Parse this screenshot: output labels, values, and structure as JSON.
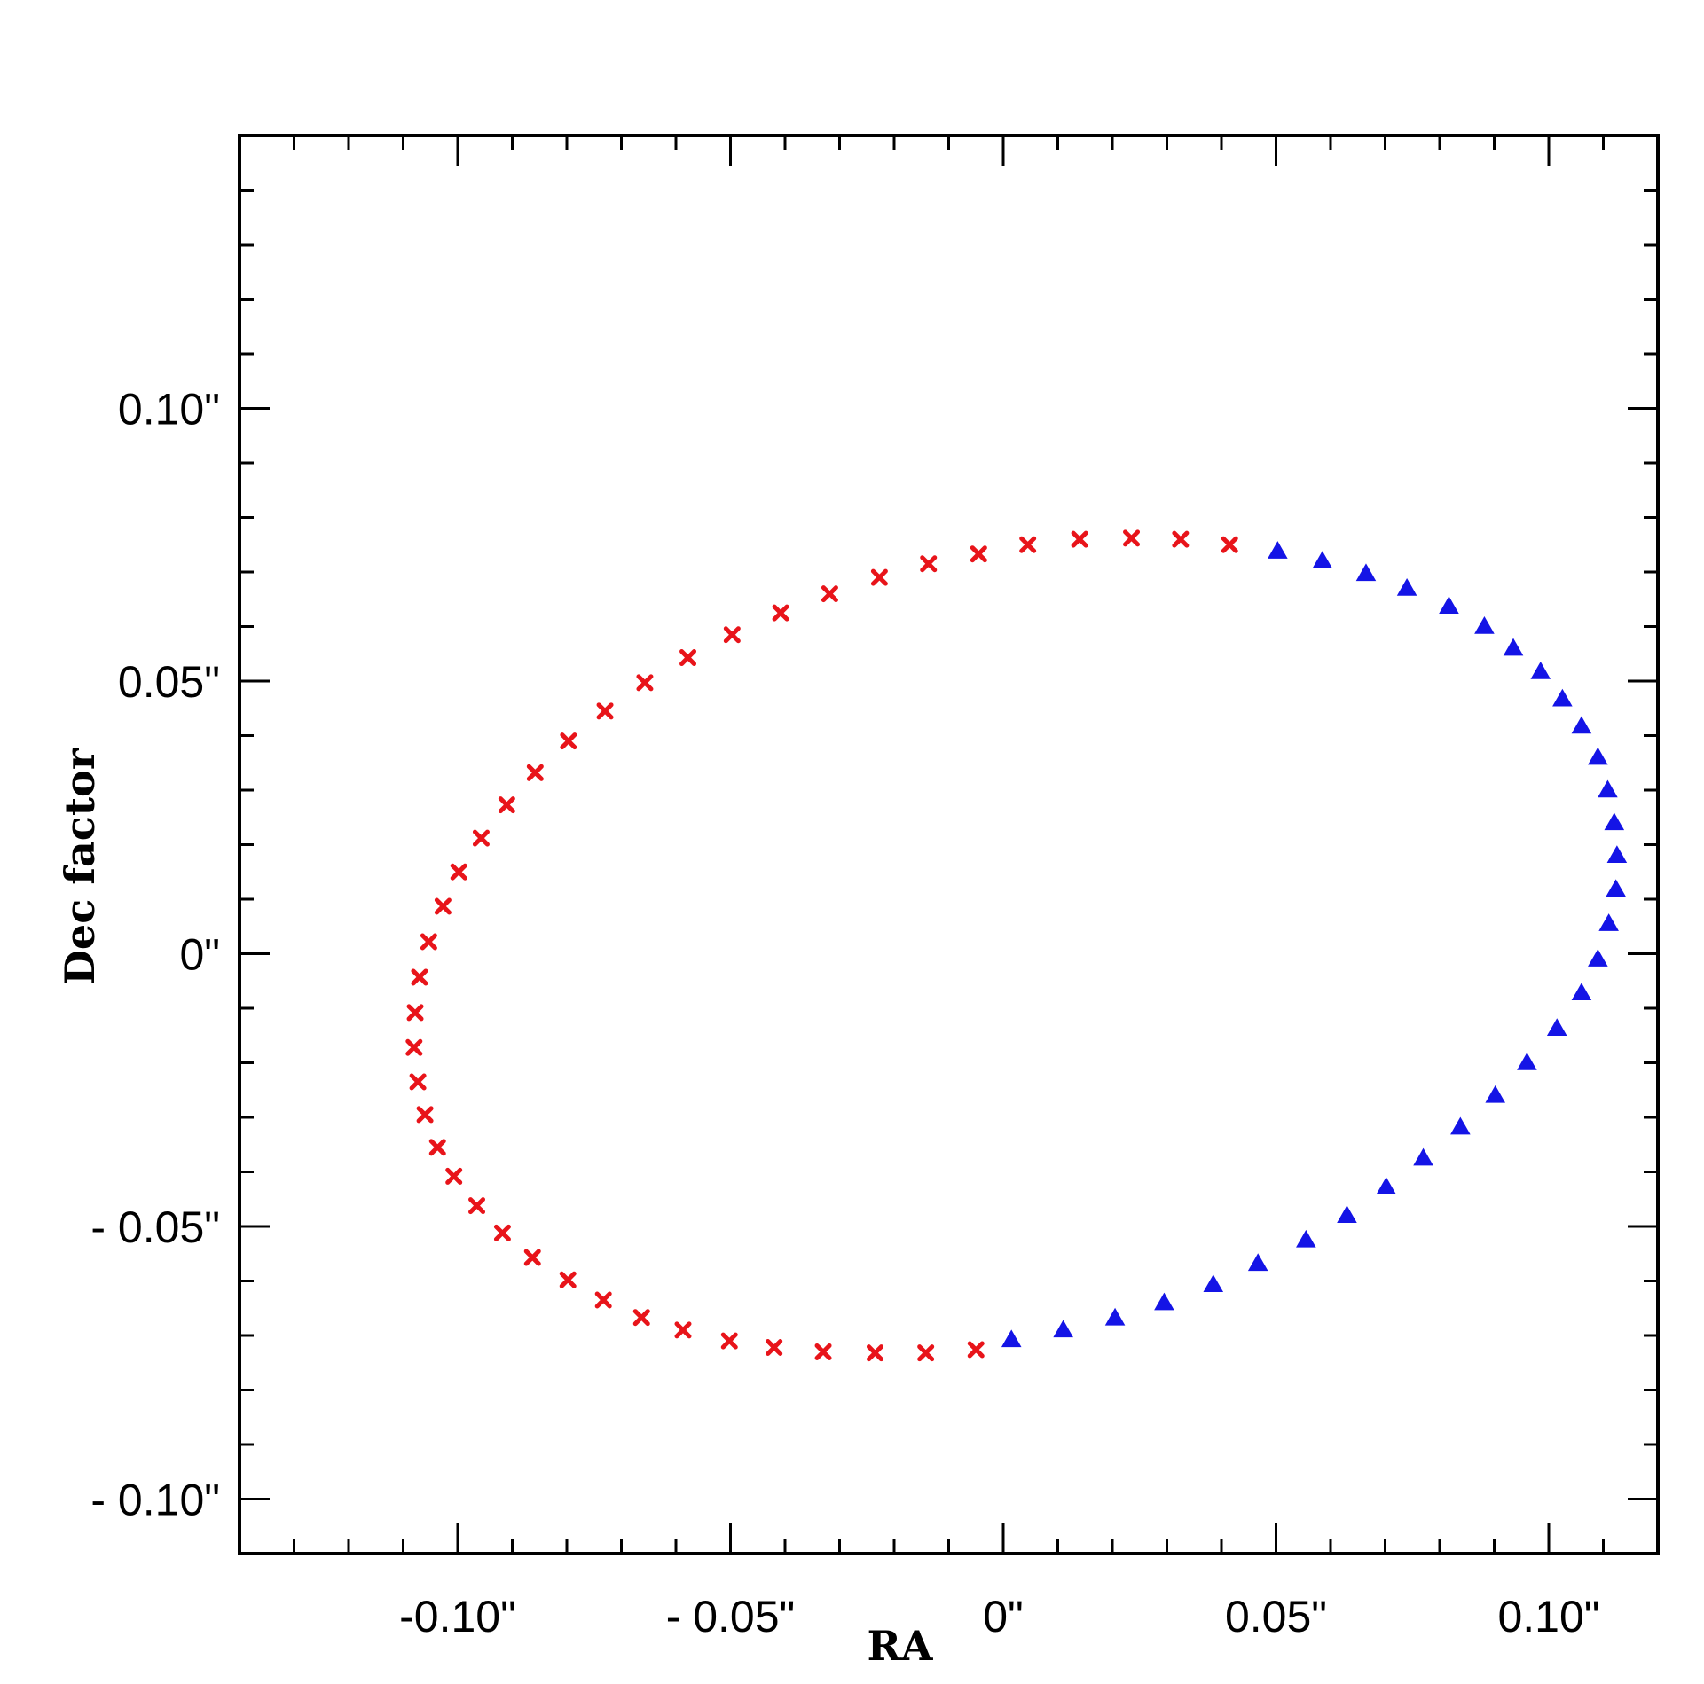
{
  "chart_data": {
    "type": "scatter",
    "title": "",
    "xlabel": "RA",
    "ylabel": "Dec factor",
    "xlim": [
      -0.14,
      0.12
    ],
    "ylim": [
      -0.11,
      0.15
    ],
    "grid": false,
    "x_ticks": [
      {
        "value": -0.1,
        "label": "-0.10\""
      },
      {
        "value": -0.05,
        "label": "- 0.05\""
      },
      {
        "value": 0.0,
        "label": "0\""
      },
      {
        "value": 0.05,
        "label": "0.05\""
      },
      {
        "value": 0.1,
        "label": "0.10\""
      }
    ],
    "y_ticks": [
      {
        "value": 0.1,
        "label": "0.10\""
      },
      {
        "value": 0.05,
        "label": "0.05\""
      },
      {
        "value": 0.0,
        "label": "0\""
      },
      {
        "value": -0.05,
        "label": "- 0.05\""
      },
      {
        "value": -0.1,
        "label": "- 0.10\""
      }
    ],
    "minor_tick_step": 0.01,
    "series": [
      {
        "color": "#e8141a",
        "marker": "x",
        "points": [
          [
            0.0415,
            0.075
          ],
          [
            0.0325,
            0.076
          ],
          [
            0.0235,
            0.0762
          ],
          [
            0.014,
            0.076
          ],
          [
            0.0045,
            0.075
          ],
          [
            -0.0045,
            0.0733
          ],
          [
            -0.0137,
            0.0715
          ],
          [
            -0.0227,
            0.069
          ],
          [
            -0.0318,
            0.066
          ],
          [
            -0.0408,
            0.0625
          ],
          [
            -0.0497,
            0.0585
          ],
          [
            -0.0578,
            0.0543
          ],
          [
            -0.0657,
            0.0497
          ],
          [
            -0.073,
            0.0445
          ],
          [
            -0.0797,
            0.039
          ],
          [
            -0.0858,
            0.0332
          ],
          [
            -0.091,
            0.0273
          ],
          [
            -0.0957,
            0.0212
          ],
          [
            -0.0998,
            0.015
          ],
          [
            -0.1027,
            0.0087
          ],
          [
            -0.1053,
            0.0022
          ],
          [
            -0.107,
            -0.0043
          ],
          [
            -0.1078,
            -0.0108
          ],
          [
            -0.108,
            -0.0172
          ],
          [
            -0.1073,
            -0.0235
          ],
          [
            -0.106,
            -0.0295
          ],
          [
            -0.1037,
            -0.0355
          ],
          [
            -0.1007,
            -0.0408
          ],
          [
            -0.0965,
            -0.0462
          ],
          [
            -0.0918,
            -0.0512
          ],
          [
            -0.0863,
            -0.0557
          ],
          [
            -0.0798,
            -0.0598
          ],
          [
            -0.0733,
            -0.0635
          ],
          [
            -0.0663,
            -0.0667
          ],
          [
            -0.0587,
            -0.069
          ],
          [
            -0.0502,
            -0.071
          ],
          [
            -0.042,
            -0.0722
          ],
          [
            -0.033,
            -0.073
          ],
          [
            -0.0235,
            -0.0732
          ],
          [
            -0.0142,
            -0.0732
          ],
          [
            -0.005,
            -0.0726
          ]
        ]
      },
      {
        "color": "#1414e6",
        "marker": "triangle",
        "points": [
          [
            0.0503,
            0.0738
          ],
          [
            0.0585,
            0.072
          ],
          [
            0.0665,
            0.0697
          ],
          [
            0.074,
            0.067
          ],
          [
            0.0817,
            0.0637
          ],
          [
            0.0882,
            0.06
          ],
          [
            0.0935,
            0.056
          ],
          [
            0.0985,
            0.0517
          ],
          [
            0.1025,
            0.0467
          ],
          [
            0.106,
            0.0417
          ],
          [
            0.109,
            0.036
          ],
          [
            0.1108,
            0.03
          ],
          [
            0.112,
            0.024
          ],
          [
            0.1125,
            0.018
          ],
          [
            0.1123,
            0.0118
          ],
          [
            0.111,
            0.0055
          ],
          [
            0.109,
            -0.001
          ],
          [
            0.106,
            -0.0072
          ],
          [
            0.1015,
            -0.0137
          ],
          [
            0.096,
            -0.02
          ],
          [
            0.0902,
            -0.026
          ],
          [
            0.0838,
            -0.0318
          ],
          [
            0.077,
            -0.0375
          ],
          [
            0.0702,
            -0.0428
          ],
          [
            0.063,
            -0.048
          ],
          [
            0.0555,
            -0.0525
          ],
          [
            0.0467,
            -0.0568
          ],
          [
            0.0385,
            -0.0607
          ],
          [
            0.0295,
            -0.064
          ],
          [
            0.0205,
            -0.0668
          ],
          [
            0.011,
            -0.069
          ],
          [
            0.0015,
            -0.0708
          ]
        ]
      }
    ]
  }
}
